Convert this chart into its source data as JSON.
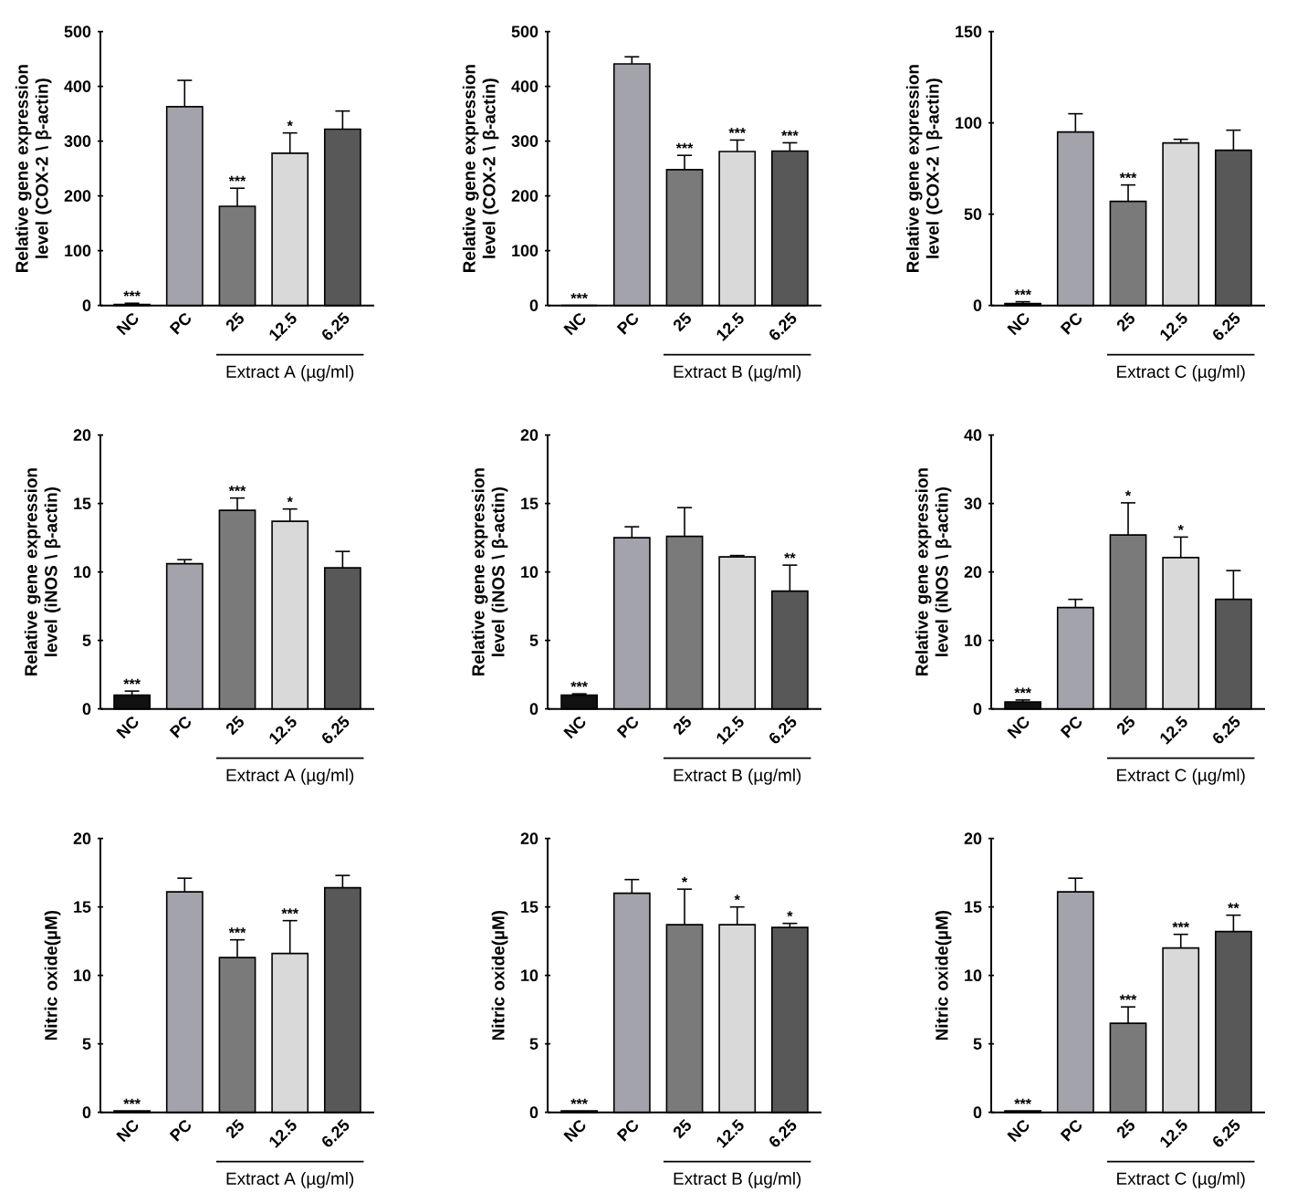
{
  "chart_data": [
    {
      "type": "bar",
      "ylabel": "Relative gene expression level (COX-2 \\ β-actin)",
      "categories": [
        "NC",
        "PC",
        "25",
        "12.5",
        "6.25"
      ],
      "values": [
        2,
        363,
        181,
        278,
        322
      ],
      "errors": [
        [
          2,
          4
        ],
        [
          363,
          411
        ],
        [
          181,
          214
        ],
        [
          278,
          315
        ],
        [
          322,
          355
        ]
      ],
      "colors": [
        "#111111",
        "#a3a3ab",
        "#7a7a7a",
        "#d9d9d9",
        "#585858"
      ],
      "ylim": [
        0,
        500
      ],
      "yticks": [
        0,
        100,
        200,
        300,
        400,
        500
      ],
      "value_labels": [
        "***",
        null,
        "***",
        "*",
        null
      ],
      "annotations": [
        "Extract A (µg/ml)"
      ]
    },
    {
      "type": "bar",
      "ylabel": "Relative gene expression level (COX-2 \\ β-actin)",
      "categories": [
        "NC",
        "PC",
        "25",
        "12.5",
        "6.25"
      ],
      "values": [
        0,
        441,
        248,
        281,
        282
      ],
      "errors": [
        [
          0,
          0
        ],
        [
          441,
          454
        ],
        [
          248,
          274
        ],
        [
          281,
          302
        ],
        [
          282,
          297
        ]
      ],
      "colors": [
        "#111111",
        "#a3a3ab",
        "#7a7a7a",
        "#d9d9d9",
        "#585858"
      ],
      "ylim": [
        0,
        500
      ],
      "yticks": [
        0,
        100,
        200,
        300,
        400,
        500
      ],
      "value_labels": [
        "***",
        null,
        "***",
        "***",
        "***"
      ],
      "annotations": [
        "Extract B (µg/ml)"
      ]
    },
    {
      "type": "bar",
      "ylabel": "Relative gene expression level (COX-2 \\ β-actin)",
      "categories": [
        "NC",
        "PC",
        "25",
        "12.5",
        "6.25"
      ],
      "values": [
        1,
        95,
        57,
        89,
        85
      ],
      "errors": [
        [
          1,
          2
        ],
        [
          95,
          105
        ],
        [
          57,
          66
        ],
        [
          89,
          91
        ],
        [
          85,
          96
        ]
      ],
      "colors": [
        "#111111",
        "#a3a3ab",
        "#7a7a7a",
        "#d9d9d9",
        "#585858"
      ],
      "ylim": [
        0,
        150
      ],
      "yticks": [
        0,
        50,
        100,
        150
      ],
      "value_labels": [
        "***",
        null,
        "***",
        null,
        null
      ],
      "annotations": [
        "Extract C (µg/ml)"
      ]
    },
    {
      "type": "bar",
      "ylabel": "Relative gene expression level (iNOS \\ β-actin)",
      "categories": [
        "NC",
        "PC",
        "25",
        "12.5",
        "6.25"
      ],
      "values": [
        1.0,
        10.6,
        14.5,
        13.7,
        10.3
      ],
      "errors": [
        [
          1.0,
          1.3
        ],
        [
          10.6,
          10.9
        ],
        [
          14.5,
          15.4
        ],
        [
          13.7,
          14.6
        ],
        [
          10.3,
          11.5
        ]
      ],
      "colors": [
        "#111111",
        "#a3a3ab",
        "#7a7a7a",
        "#d9d9d9",
        "#585858"
      ],
      "ylim": [
        0,
        20
      ],
      "yticks": [
        0,
        5,
        10,
        15,
        20
      ],
      "value_labels": [
        "***",
        null,
        "***",
        "*",
        null
      ],
      "annotations": [
        "Extract A (µg/ml)"
      ]
    },
    {
      "type": "bar",
      "ylabel": "Relative gene expression level (iNOS \\ β-actin)",
      "categories": [
        "NC",
        "PC",
        "25",
        "12.5",
        "6.25"
      ],
      "values": [
        1.0,
        12.5,
        12.6,
        11.1,
        8.6
      ],
      "errors": [
        [
          1.0,
          1.1
        ],
        [
          12.5,
          13.3
        ],
        [
          12.6,
          14.7
        ],
        [
          11.1,
          11.2
        ],
        [
          8.6,
          10.5
        ]
      ],
      "colors": [
        "#111111",
        "#a3a3ab",
        "#7a7a7a",
        "#d9d9d9",
        "#585858"
      ],
      "ylim": [
        0,
        20
      ],
      "yticks": [
        0,
        5,
        10,
        15,
        20
      ],
      "value_labels": [
        "***",
        null,
        null,
        null,
        "**"
      ],
      "annotations": [
        "Extract B (µg/ml)"
      ]
    },
    {
      "type": "bar",
      "ylabel": "Relative gene expression level (iNOS \\ β-actin)",
      "categories": [
        "NC",
        "PC",
        "25",
        "12.5",
        "6.25"
      ],
      "values": [
        1,
        14.8,
        25.4,
        22.1,
        16
      ],
      "errors": [
        [
          1,
          1.3
        ],
        [
          14.8,
          16
        ],
        [
          25.4,
          30.1
        ],
        [
          22.1,
          25.1
        ],
        [
          16,
          20.2
        ]
      ],
      "colors": [
        "#111111",
        "#a3a3ab",
        "#7a7a7a",
        "#d9d9d9",
        "#585858"
      ],
      "ylim": [
        0,
        40
      ],
      "yticks": [
        0,
        10,
        20,
        30,
        40
      ],
      "value_labels": [
        "***",
        null,
        "*",
        "*",
        null
      ],
      "annotations": [
        "Extract C (µg/ml)"
      ]
    },
    {
      "type": "bar",
      "ylabel": "Nitric oxide(µM)",
      "categories": [
        "NC",
        "PC",
        "25",
        "12.5",
        "6.25"
      ],
      "values": [
        0.1,
        16.1,
        11.3,
        11.6,
        16.4
      ],
      "errors": [
        [
          0.1,
          0.1
        ],
        [
          16.1,
          17.1
        ],
        [
          11.3,
          12.6
        ],
        [
          11.6,
          14.0
        ],
        [
          16.4,
          17.3
        ]
      ],
      "colors": [
        "#111111",
        "#a3a3ab",
        "#7a7a7a",
        "#d9d9d9",
        "#585858"
      ],
      "ylim": [
        0,
        20
      ],
      "yticks": [
        0,
        5,
        10,
        15,
        20
      ],
      "value_labels": [
        "***",
        null,
        "***",
        "***",
        null
      ],
      "annotations": [
        "Extract A (µg/ml)"
      ]
    },
    {
      "type": "bar",
      "ylabel": "Nitric oxide(µM)",
      "categories": [
        "NC",
        "PC",
        "25",
        "12.5",
        "6.25"
      ],
      "values": [
        0.1,
        16.0,
        13.7,
        13.7,
        13.5
      ],
      "errors": [
        [
          0.1,
          0.1
        ],
        [
          16.0,
          17.0
        ],
        [
          13.7,
          16.3
        ],
        [
          13.7,
          15.0
        ],
        [
          13.5,
          13.8
        ]
      ],
      "colors": [
        "#111111",
        "#a3a3ab",
        "#7a7a7a",
        "#d9d9d9",
        "#585858"
      ],
      "ylim": [
        0,
        20
      ],
      "yticks": [
        0,
        5,
        10,
        15,
        20
      ],
      "value_labels": [
        "***",
        null,
        "*",
        "*",
        "*"
      ],
      "annotations": [
        "Extract B (µg/ml)"
      ]
    },
    {
      "type": "bar",
      "ylabel": "Nitric oxide(µM)",
      "categories": [
        "NC",
        "PC",
        "25",
        "12.5",
        "6.25"
      ],
      "values": [
        0.1,
        16.1,
        6.5,
        12.0,
        13.2
      ],
      "errors": [
        [
          0.1,
          0.1
        ],
        [
          16.1,
          17.1
        ],
        [
          6.5,
          7.7
        ],
        [
          12.0,
          13.0
        ],
        [
          13.2,
          14.4
        ]
      ],
      "colors": [
        "#111111",
        "#a3a3ab",
        "#7a7a7a",
        "#d9d9d9",
        "#585858"
      ],
      "ylim": [
        0,
        20
      ],
      "yticks": [
        0,
        5,
        10,
        15,
        20
      ],
      "value_labels": [
        "***",
        null,
        "***",
        "***",
        "**"
      ],
      "annotations": [
        "Extract C (µg/ml)"
      ]
    }
  ]
}
